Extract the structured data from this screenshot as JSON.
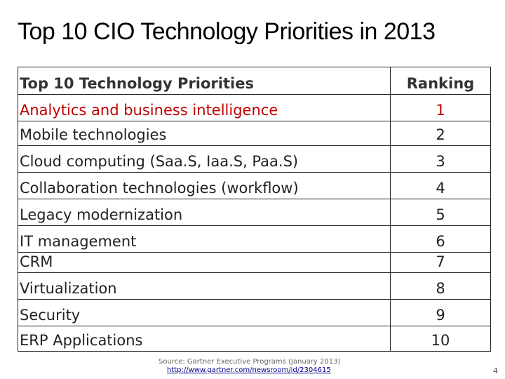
{
  "title": "Top 10 CIO Technology Priorities in 2013",
  "table": {
    "headers": [
      "Top 10 Technology Priorities",
      "Ranking"
    ],
    "rows": [
      {
        "priority": "Analytics and business intelligence",
        "rank": "1"
      },
      {
        "priority": "Mobile technologies",
        "rank": "2"
      },
      {
        "priority": "Cloud computing (Saa.S, Iaa.S, Paa.S)",
        "rank": "3"
      },
      {
        "priority": "Collaboration technologies (workflow)",
        "rank": "4"
      },
      {
        "priority": "Legacy modernization",
        "rank": "5"
      },
      {
        "priority": "IT management",
        "rank": "6"
      },
      {
        "priority": "CRM",
        "rank": "7"
      },
      {
        "priority": "Virtualization",
        "rank": "8"
      },
      {
        "priority": "Security",
        "rank": "9"
      },
      {
        "priority": "ERP Applications",
        "rank": "10"
      }
    ]
  },
  "source": "Source: Gartner Executive Programs (January 2013)",
  "link": "http://www.gartner.com/newsroom/id/2304615",
  "page_number": "4",
  "colors": {
    "highlight": "#c00000",
    "link": "#00008b"
  }
}
